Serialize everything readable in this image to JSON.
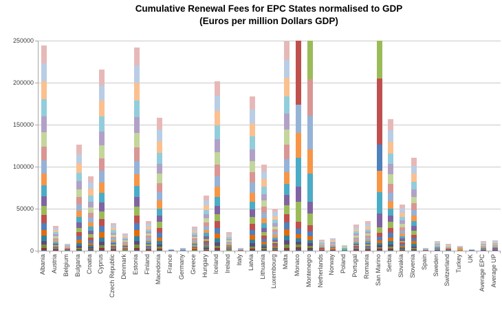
{
  "chart_data": {
    "type": "bar",
    "stacked": true,
    "title": "Cumulative Renewal Fees for EPC States normalised to GDP",
    "subtitle": "(Euros per million Dollars GDP)",
    "xlabel": "",
    "ylabel": "",
    "ylim": [
      0,
      250000
    ],
    "yticks": [
      0,
      50000,
      100000,
      150000,
      200000,
      250000
    ],
    "grid": true,
    "legend": "none",
    "axis_color": "#A6A6A6",
    "gridline_color": "#C9C9C9",
    "label_color": "#3F3F3F",
    "palette": [
      "#366092",
      "#943634",
      "#76923C",
      "#5F497A",
      "#31849B",
      "#E36C09",
      "#4F81BD",
      "#C0504D",
      "#9BBB59",
      "#8064A2",
      "#4BACC6",
      "#F79646",
      "#95B3D7",
      "#D99694",
      "#C3D69B",
      "#B2A1C7",
      "#92CDDC",
      "#FAC090",
      "#B9CDE5",
      "#E6B9B8"
    ],
    "segment_weights": [
      1,
      2,
      3,
      4,
      5,
      6,
      7,
      8,
      9,
      10,
      11,
      12,
      13,
      14,
      15,
      16,
      17,
      18,
      18,
      18
    ],
    "categories": [
      "Albania",
      "Austria",
      "Belgium",
      "Bulgaria",
      "Croatia",
      "Cyprus",
      "Czech Republic",
      "Denmark",
      "Estonia",
      "Finland",
      "Macedonia",
      "France",
      "Germany",
      "Greece",
      "Hungary",
      "Iceland",
      "Ireland",
      "Italy",
      "Latvia",
      "Lithuania",
      "Luxembourg",
      "Malta",
      "Monaco",
      "Montenegro",
      "Netherlands",
      "Norway",
      "Poland",
      "Portugal",
      "Romania",
      "San Marino",
      "Serbia",
      "Slovakia",
      "Slovenia",
      "Spain",
      "Sweden",
      "Switzerland",
      "Turkey",
      "UK",
      "Average EPC",
      "Average UP"
    ],
    "totals": [
      244000,
      30000,
      8500,
      126000,
      89000,
      216000,
      33000,
      21000,
      242000,
      35000,
      158000,
      2000,
      3500,
      29000,
      66000,
      202000,
      22000,
      3000,
      184000,
      103000,
      50000,
      249000,
      253500,
      250500,
      13000,
      15000,
      7000,
      31000,
      35000,
      250000,
      157000,
      55000,
      111000,
      3000,
      12000,
      8000,
      6000,
      2000,
      11500,
      12500
    ],
    "segment_overrides": {
      "Monaco": [
        [
          0,
          2000
        ],
        [
          1,
          2500
        ],
        [
          2,
          3000
        ],
        [
          3,
          3500
        ],
        [
          4,
          4000
        ],
        [
          5,
          5000
        ],
        [
          6,
          6500
        ],
        [
          7,
          8000
        ],
        [
          8,
          24000
        ],
        [
          9,
          18000
        ],
        [
          10,
          34000
        ],
        [
          11,
          30000
        ],
        [
          12,
          33000
        ],
        [
          7,
          80000
        ]
      ],
      "Montenegro": [
        [
          0,
          1500
        ],
        [
          1,
          2000
        ],
        [
          2,
          2500
        ],
        [
          3,
          3000
        ],
        [
          4,
          3500
        ],
        [
          5,
          4500
        ],
        [
          6,
          6000
        ],
        [
          7,
          7500
        ],
        [
          8,
          14000
        ],
        [
          9,
          14000
        ],
        [
          10,
          33000
        ],
        [
          11,
          29000
        ],
        [
          12,
          40000
        ],
        [
          13,
          44000
        ],
        [
          8,
          46000
        ]
      ],
      "San Marino": [
        [
          0,
          1200
        ],
        [
          1,
          1500
        ],
        [
          2,
          1800
        ],
        [
          3,
          2200
        ],
        [
          4,
          2600
        ],
        [
          5,
          3200
        ],
        [
          6,
          4000
        ],
        [
          7,
          5000
        ],
        [
          8,
          6500
        ],
        [
          9,
          16000
        ],
        [
          10,
          26000
        ],
        [
          11,
          25000
        ],
        [
          6,
          31000
        ],
        [
          7,
          79000
        ],
        [
          8,
          45000
        ]
      ]
    }
  }
}
